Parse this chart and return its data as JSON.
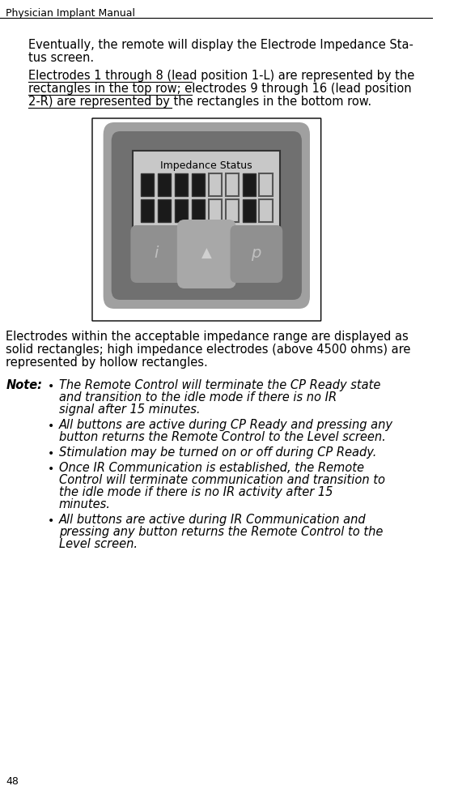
{
  "header_text": "Physician Implant Manual",
  "page_number": "48",
  "body_font_size": 10.5,
  "header_font_size": 10,
  "note_label": "Note:",
  "para1": "Eventually, the remote will display the Electrode Impedance Status screen.",
  "para2": "Electrodes 1 through 8 (lead position 1-L) are represented by the rectangles in the top row; electrodes 9 through 16 (lead position 2-R) are represented by the rectangles in the bottom row.",
  "para3": "Electrodes within the acceptable impedance range are displayed as solid rectangles; high impedance electrodes (above 4500 ohms) are represented by hollow rectangles.",
  "bullets": [
    "The Remote Control will terminate the CP Ready state and transition to the idle mode if there is no IR signal after 15 minutes.",
    "All buttons are active during CP Ready and pressing any button returns the Remote Control to the Level screen.",
    "Stimulation may be turned on or off during CP Ready.",
    "Once IR Communication is established, the Remote Control will terminate communication and transition to the idle mode if there is no IR activity after 15 minutes.",
    "All buttons are active during IR Communication and pressing any button returns the Remote Control to the Level screen."
  ],
  "impedance_label": "Impedance Status",
  "top_row_solid": [
    1,
    1,
    1,
    1,
    0,
    0,
    1,
    0
  ],
  "bottom_row_solid": [
    1,
    1,
    1,
    1,
    0,
    0,
    1,
    0
  ],
  "bg_color": "#ffffff",
  "text_color": "#000000",
  "device_body_color": "#808080",
  "device_inner_color": "#696969",
  "screen_bg": "#d0d0d0",
  "screen_dark": "#1a1a1a",
  "rect_solid_color": "#1a1a1a",
  "rect_hollow_color": "#d0d0d0",
  "underline_text": "Electrodes 1 through 8 (lead position 1-L) are represented by the rectangles in the top row; electrodes 9 through 16 (lead position 2-R) are represented by the rectangles in the bottom row."
}
